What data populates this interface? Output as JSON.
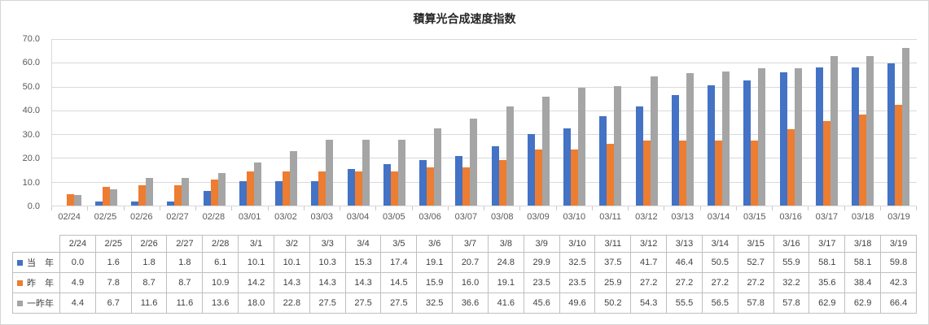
{
  "chart_title": "積算光合成速度指数",
  "chart_data": {
    "type": "bar",
    "title": "積算光合成速度指数",
    "xlabel": "",
    "ylabel": "",
    "ylim": [
      0,
      70
    ],
    "ytick_step": 10,
    "ytick_labels": [
      "0.0",
      "10.0",
      "20.0",
      "30.0",
      "40.0",
      "50.0",
      "60.0",
      "70.0"
    ],
    "grid": true,
    "legend_position": "data-table-left",
    "x_labels": [
      "02/24",
      "02/25",
      "02/26",
      "02/27",
      "02/28",
      "03/01",
      "03/02",
      "03/03",
      "03/04",
      "03/05",
      "03/06",
      "03/07",
      "03/08",
      "03/09",
      "03/10",
      "03/11",
      "03/12",
      "03/13",
      "03/14",
      "03/15",
      "03/16",
      "03/17",
      "03/18",
      "03/19"
    ],
    "series": [
      {
        "name": "当年",
        "table_label": "当　年",
        "color": "#4472C4",
        "values": [
          0.0,
          1.6,
          1.8,
          1.8,
          6.1,
          10.1,
          10.1,
          10.3,
          15.3,
          17.4,
          19.1,
          20.7,
          24.8,
          29.9,
          32.5,
          37.5,
          41.7,
          46.4,
          50.5,
          52.7,
          55.9,
          58.1,
          58.1,
          59.8
        ]
      },
      {
        "name": "昨年",
        "table_label": "昨　年",
        "color": "#ED7D31",
        "values": [
          4.9,
          7.8,
          8.7,
          8.7,
          10.9,
          14.2,
          14.3,
          14.3,
          14.3,
          14.5,
          15.9,
          16.0,
          19.1,
          23.5,
          23.5,
          25.9,
          27.2,
          27.2,
          27.2,
          27.2,
          32.2,
          35.6,
          38.4,
          42.3
        ]
      },
      {
        "name": "一昨年",
        "table_label": "一昨年",
        "color": "#A5A5A5",
        "values": [
          4.4,
          6.7,
          11.6,
          11.6,
          13.6,
          18.0,
          22.8,
          27.5,
          27.5,
          27.5,
          32.5,
          36.6,
          41.6,
          45.6,
          49.6,
          50.2,
          54.3,
          55.5,
          56.5,
          57.8,
          57.8,
          62.9,
          62.9,
          66.4
        ]
      }
    ]
  },
  "table": {
    "columns": [
      "2/24",
      "2/25",
      "2/26",
      "2/27",
      "2/28",
      "3/1",
      "3/2",
      "3/3",
      "3/4",
      "3/5",
      "3/6",
      "3/7",
      "3/8",
      "3/9",
      "3/10",
      "3/11",
      "3/12",
      "3/13",
      "3/14",
      "3/15",
      "3/16",
      "3/17",
      "3/18",
      "3/19"
    ]
  },
  "style_colors": {
    "gridline": "#D9D9D9",
    "axis_line": "#D9D9D9",
    "tick": "#C9C9C9",
    "table_border": "#BFBFBF"
  }
}
